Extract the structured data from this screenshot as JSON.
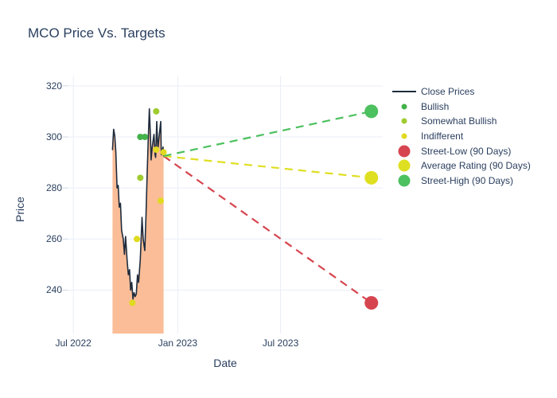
{
  "title": "MCO Price Vs. Targets",
  "colors": {
    "text": "#2a3f5f",
    "grid": "#e9eef6",
    "tick": "#ccd6e4",
    "close_line": "#1f2c3d",
    "close_fill": "#fabd97",
    "bullish": "#44b24a",
    "somewhat_bullish": "#9fcc2e",
    "indifferent": "#e0da20",
    "street_low": "#d6454f",
    "average_rating": "#dfdf22",
    "street_high": "#4dc05f"
  },
  "chart_data": {
    "type": "line",
    "title": "MCO Price Vs. Targets",
    "xlabel": "Date",
    "ylabel": "Price",
    "grid": true,
    "legend_position": "right",
    "x_range": [
      "2022-06-21",
      "2023-12-28"
    ],
    "y_range": [
      223,
      324
    ],
    "y_ticks": [
      240,
      260,
      280,
      300,
      320
    ],
    "x_ticks": [
      {
        "label": "Jul 2022",
        "date": "2022-07-01"
      },
      {
        "label": "Jan 2023",
        "date": "2023-01-01"
      },
      {
        "label": "Jul 2023",
        "date": "2023-07-01"
      }
    ],
    "series": [
      {
        "name": "Close Prices",
        "slug": "close-prices",
        "type": "line",
        "color_key": "close_line",
        "fill_to_bottom": true,
        "fill_color_key": "close_fill",
        "points": [
          [
            "2022-09-08",
            295
          ],
          [
            "2022-09-10",
            303
          ],
          [
            "2022-09-12",
            300.5
          ],
          [
            "2022-09-14",
            294
          ],
          [
            "2022-09-16",
            280
          ],
          [
            "2022-09-18",
            281
          ],
          [
            "2022-09-20",
            272.5
          ],
          [
            "2022-09-22",
            274
          ],
          [
            "2022-09-24",
            263.5
          ],
          [
            "2022-09-27",
            260
          ],
          [
            "2022-09-29",
            254
          ],
          [
            "2022-10-01",
            261
          ],
          [
            "2022-10-04",
            251
          ],
          [
            "2022-10-06",
            246
          ],
          [
            "2022-10-08",
            248
          ],
          [
            "2022-10-10",
            240
          ],
          [
            "2022-10-12",
            243
          ],
          [
            "2022-10-14",
            236.5
          ],
          [
            "2022-10-16",
            239
          ],
          [
            "2022-10-18",
            237.5
          ],
          [
            "2022-10-20",
            238.5
          ],
          [
            "2022-10-22",
            246
          ],
          [
            "2022-10-24",
            243
          ],
          [
            "2022-10-27",
            252
          ],
          [
            "2022-10-30",
            268.5
          ],
          [
            "2022-11-01",
            260
          ],
          [
            "2022-11-04",
            255.5
          ],
          [
            "2022-11-06",
            269.5
          ],
          [
            "2022-11-08",
            285
          ],
          [
            "2022-11-10",
            299
          ],
          [
            "2022-11-12",
            311
          ],
          [
            "2022-11-14",
            299
          ],
          [
            "2022-11-15",
            291
          ],
          [
            "2022-11-17",
            296
          ],
          [
            "2022-11-20",
            301
          ],
          [
            "2022-11-22",
            293
          ],
          [
            "2022-11-23",
            292
          ],
          [
            "2022-11-25",
            306
          ],
          [
            "2022-11-27",
            295
          ],
          [
            "2022-11-29",
            300
          ],
          [
            "2022-12-02",
            306
          ],
          [
            "2022-12-03",
            293
          ],
          [
            "2022-12-06",
            296
          ],
          [
            "2022-12-07",
            292.5
          ]
        ]
      },
      {
        "name": "Bullish",
        "slug": "bullish",
        "type": "scatter",
        "marker_radius": 4,
        "color_key": "bullish",
        "points": [
          [
            "2022-10-27",
            300
          ],
          [
            "2022-11-04",
            300
          ]
        ]
      },
      {
        "name": "Somewhat Bullish",
        "slug": "somewhat-bullish",
        "type": "scatter",
        "marker_radius": 4,
        "color_key": "somewhat_bullish",
        "points": [
          [
            "2022-10-27",
            284
          ],
          [
            "2022-11-24",
            310
          ]
        ]
      },
      {
        "name": "Indifferent",
        "slug": "indifferent",
        "type": "scatter",
        "marker_radius": 4,
        "color_key": "indifferent",
        "points": [
          [
            "2022-10-13",
            235
          ],
          [
            "2022-10-21",
            260
          ],
          [
            "2022-11-24",
            295
          ],
          [
            "2022-12-02",
            275
          ],
          [
            "2022-12-07",
            294
          ]
        ]
      },
      {
        "name": "Street-Low (90 Days)",
        "slug": "street-low",
        "type": "scatter",
        "marker_radius": 8.5,
        "color_key": "street_low",
        "points": [
          [
            "2023-12-08",
            235
          ]
        ],
        "dash_from": [
          "2022-12-07",
          292.5
        ]
      },
      {
        "name": "Average Rating (90 Days)",
        "slug": "average-rating",
        "type": "scatter",
        "marker_radius": 8.5,
        "color_key": "average_rating",
        "points": [
          [
            "2023-12-08",
            284
          ]
        ],
        "dash_from": [
          "2022-12-07",
          292.5
        ]
      },
      {
        "name": "Street-High (90 Days)",
        "slug": "street-high",
        "type": "scatter",
        "marker_radius": 8.5,
        "color_key": "street_high",
        "points": [
          [
            "2023-12-08",
            310
          ]
        ],
        "dash_from": [
          "2022-12-07",
          292.5
        ]
      }
    ]
  }
}
